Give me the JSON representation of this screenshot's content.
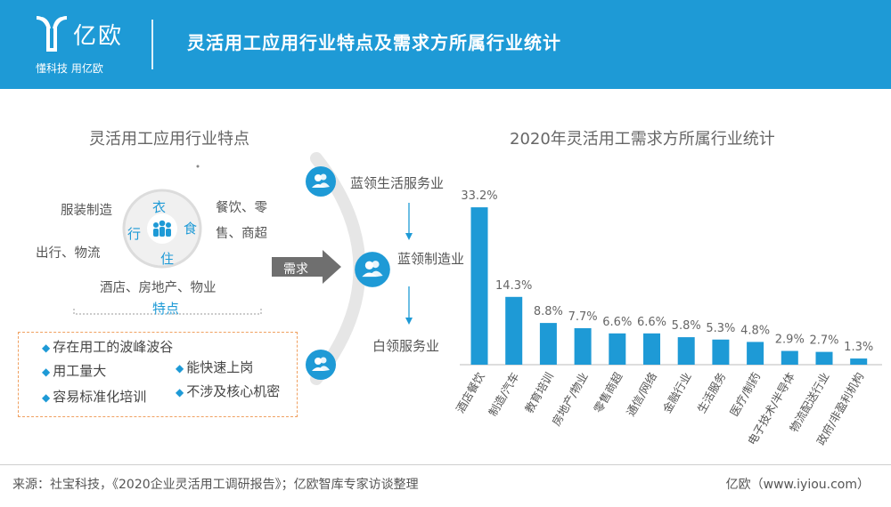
{
  "header": {
    "logo_text": "亿欧",
    "logo_slogan": "懂科技 用亿欧",
    "title": "灵活用工应用行业特点及需求方所属行业统计"
  },
  "left": {
    "title": "灵活用工应用行业特点",
    "wheel": {
      "top": "衣",
      "left": "行",
      "right": "食",
      "bottom": "住"
    },
    "categories": {
      "clothing": "服装制造",
      "dining_1": "餐饮、零",
      "dining_2": "售、商超",
      "travel": "出行、物流",
      "housing": "酒店、房地产、物业"
    },
    "features_label": "特点",
    "features": [
      "存在用工的波峰波谷",
      "用工量大",
      "能快速上岗",
      "容易标准化培训",
      "不涉及核心机密"
    ]
  },
  "middle": {
    "arrow_label": "需求",
    "flow": [
      "蓝领生活服务业",
      "蓝领制造业",
      "白领服务业"
    ]
  },
  "chart_data": {
    "type": "bar",
    "title": "2020年灵活用工需求方所属行业统计",
    "categories": [
      "酒店餐饮",
      "制造/汽车",
      "教育培训",
      "房地产/物业",
      "零售商超",
      "通信/网络",
      "金融行业",
      "生活服务",
      "医疗/制药",
      "电子技术/半导体",
      "物流配送行业",
      "政府/非盈利机构"
    ],
    "values": [
      33.2,
      14.3,
      8.8,
      7.7,
      6.6,
      6.6,
      5.8,
      5.3,
      4.8,
      2.9,
      2.7,
      1.3
    ],
    "value_labels": [
      "33.2%",
      "14.3%",
      "8.8%",
      "7.7%",
      "6.6%",
      "6.6%",
      "5.8%",
      "5.3%",
      "4.8%",
      "2.9%",
      "2.7%",
      "1.3%"
    ],
    "ylim": [
      0,
      35
    ],
    "grid": false,
    "color": "#1e9ad6"
  },
  "footer": {
    "source": "来源：社宝科技，《2020企业灵活用工调研报告》；亿欧智库专家访谈整理",
    "credit": "亿欧（www.iyiou.com）"
  }
}
